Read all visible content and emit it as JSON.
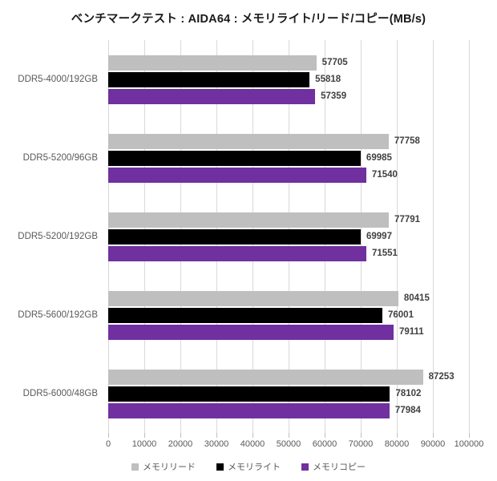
{
  "chart_data": {
    "type": "bar",
    "orientation": "horizontal",
    "title": "ベンチマークテスト : AIDA64 : メモリライト/リード/コピー(MB/s)",
    "categories": [
      "DDR5-4000/192GB",
      "DDR5-5200/96GB",
      "DDR5-5200/192GB",
      "DDR5-5600/192GB",
      "DDR5-6000/48GB"
    ],
    "series": [
      {
        "name": "メモリリード",
        "color": "#bfbfbf",
        "values": [
          57705,
          77758,
          77791,
          80415,
          87253
        ]
      },
      {
        "name": "メモリライト",
        "color": "#000000",
        "values": [
          55818,
          69985,
          69997,
          76001,
          78102
        ]
      },
      {
        "name": "メモリコピー",
        "color": "#7030a0",
        "values": [
          57359,
          71540,
          71551,
          79111,
          77984
        ]
      }
    ],
    "xlim": [
      0,
      100000
    ],
    "xticks": [
      0,
      10000,
      20000,
      30000,
      40000,
      50000,
      60000,
      70000,
      80000,
      90000,
      100000
    ],
    "grid": true,
    "legend_position": "bottom"
  },
  "colors": {
    "background": "#ffffff",
    "gridline": "#d9d9d9",
    "tick": "#bfbfbf",
    "title_text": "#1a1a1a",
    "value_label": "#404040",
    "axis_label": "#595959"
  }
}
